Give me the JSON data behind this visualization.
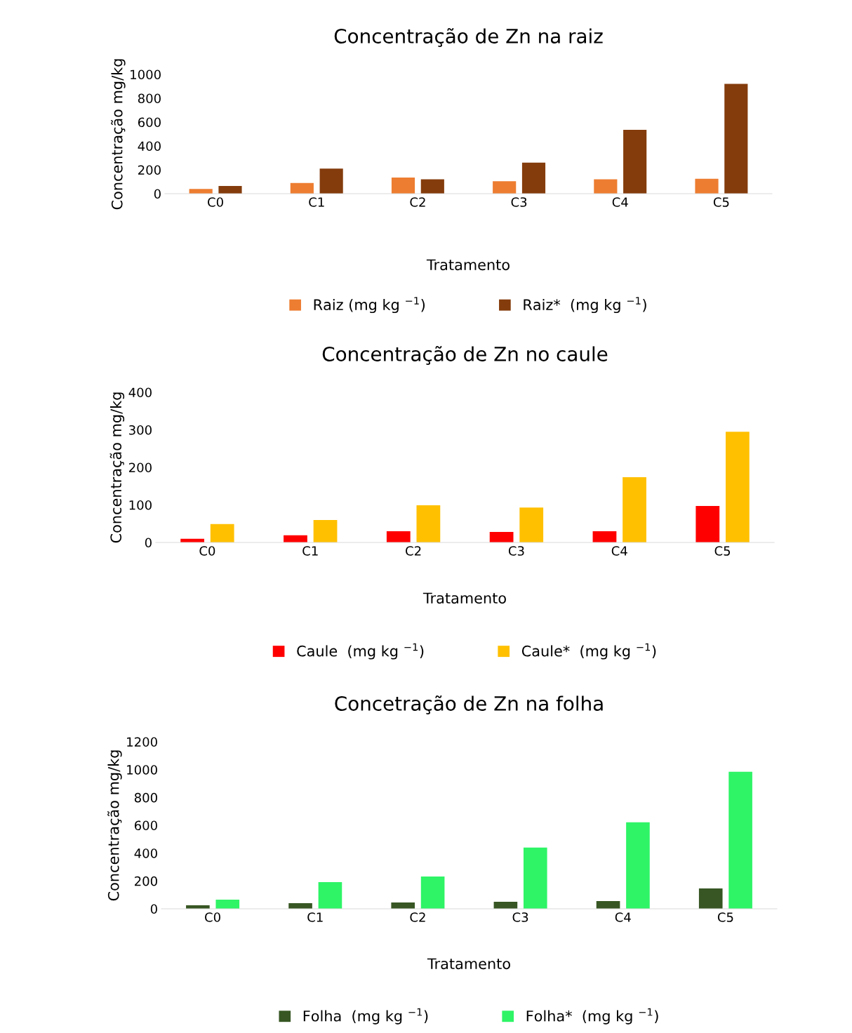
{
  "chart_data": [
    {
      "type": "bar",
      "title": "Concentração de Zn na raiz",
      "xlabel": "Tratamento",
      "ylabel": "Concentração mg/kg",
      "categories": [
        "C0",
        "C1",
        "C2",
        "C3",
        "C4",
        "C5"
      ],
      "series": [
        {
          "name": "Raiz (mg kg $^{−1}$)",
          "color": "#ed7d31",
          "values": [
            40,
            90,
            135,
            105,
            120,
            125
          ]
        },
        {
          "name": "Raiz*  (mg kg $^{−1}$)",
          "color": "#843c0c",
          "values": [
            65,
            210,
            120,
            260,
            535,
            920
          ]
        }
      ],
      "ylim": [
        0,
        1000
      ],
      "yticks": [
        0,
        200,
        400,
        600,
        800,
        1000
      ],
      "grid": false,
      "legend": "bottom"
    },
    {
      "type": "bar",
      "title": "Concentração de Zn no caule",
      "xlabel": "Tratamento",
      "ylabel": "Concentração mg/kg",
      "categories": [
        "C0",
        "C1",
        "C2",
        "C3",
        "C4",
        "C5"
      ],
      "series": [
        {
          "name": "Caule  (mg kg $^{−1}$)",
          "color": "#ff0000",
          "values": [
            10,
            19,
            30,
            28,
            30,
            97
          ]
        },
        {
          "name": "Caule*  (mg kg $^{−1}$)",
          "color": "#ffc000",
          "values": [
            49,
            60,
            99,
            93,
            174,
            295
          ]
        }
      ],
      "ylim": [
        0,
        400
      ],
      "yticks": [
        0,
        100,
        200,
        300,
        400
      ],
      "grid": false,
      "legend": "bottom"
    },
    {
      "type": "bar",
      "title": "Concetração de Zn na folha",
      "xlabel": "Tratamento",
      "ylabel": "Concentração mg/kg",
      "categories": [
        "C0",
        "C1",
        "C2",
        "C3",
        "C4",
        "C5"
      ],
      "series": [
        {
          "name": "Folha  (mg kg $^{−1}$)",
          "color": "#375623",
          "values": [
            25,
            40,
            45,
            50,
            55,
            146
          ]
        },
        {
          "name": "Folha*  (mg kg $^{−1}$)",
          "color": "#2ef466",
          "values": [
            65,
            192,
            232,
            440,
            621,
            985
          ]
        }
      ],
      "ylim": [
        0,
        1200
      ],
      "yticks": [
        0,
        200,
        400,
        600,
        800,
        1000,
        1200
      ],
      "grid": false,
      "legend": "bottom"
    }
  ]
}
